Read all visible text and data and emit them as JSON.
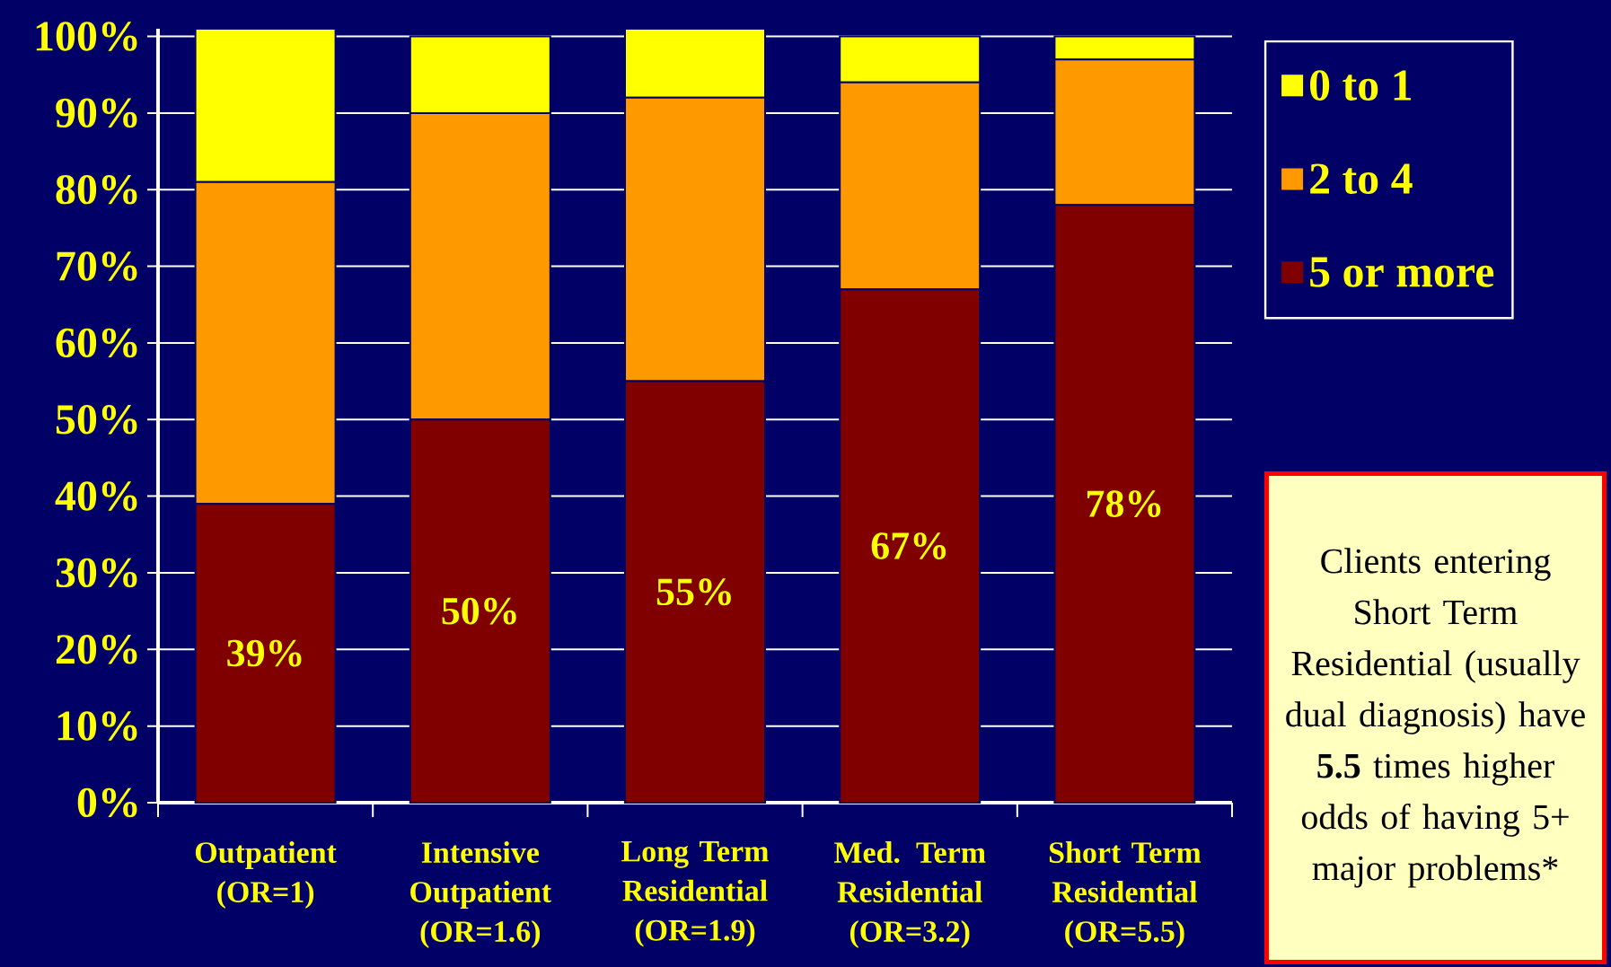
{
  "chart_data": {
    "type": "bar",
    "stacked": true,
    "categories": [
      "Outpatient (OR=1)",
      "Intensive Outpatient (OR=1.6)",
      "Long Term Residential (OR=1.9)",
      "Med. Term Residential (OR=3.2)",
      "Short Term Residential (OR=5.5)"
    ],
    "series": [
      {
        "name": "5 or more",
        "color": "#800000",
        "values": [
          39,
          50,
          55,
          67,
          78
        ],
        "value_labels": [
          "39%",
          "50%",
          "55%",
          "67%",
          "78%"
        ]
      },
      {
        "name": "2 to 4",
        "color": "#ff9900",
        "values": [
          42,
          40,
          37,
          27,
          19
        ]
      },
      {
        "name": "0 to 1",
        "color": "#ffff00",
        "values": [
          20,
          10,
          9,
          6,
          3
        ]
      }
    ],
    "ylim": [
      0,
      101
    ],
    "yticks": [
      {
        "value": 0,
        "label": "0%"
      },
      {
        "value": 10,
        "label": "10%"
      },
      {
        "value": 20,
        "label": "20%"
      },
      {
        "value": 30,
        "label": "30%"
      },
      {
        "value": 40,
        "label": "40%"
      },
      {
        "value": 50,
        "label": "50%"
      },
      {
        "value": 60,
        "label": "60%"
      },
      {
        "value": 70,
        "label": "70%"
      },
      {
        "value": 80,
        "label": "80%"
      },
      {
        "value": 90,
        "label": "90%"
      },
      {
        "value": 100,
        "label": "100%"
      }
    ],
    "grid": "y",
    "legend": "right",
    "annotations": [
      "Clients entering Short Term Residential (usually dual diagnosis) have **5.5** times higher odds of having 5+ major problems*"
    ]
  }
}
